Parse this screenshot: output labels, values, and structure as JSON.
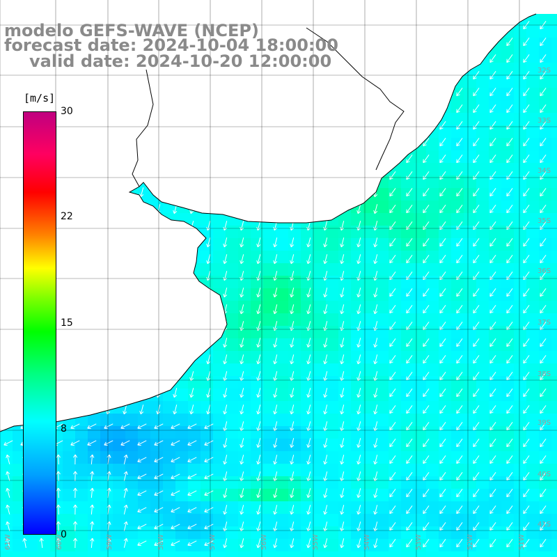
{
  "title": {
    "line1": "modelo GEFS-WAVE (NCEP)",
    "line2": "forecast date: 2024-10-04 18:00:00",
    "line3": "valid date: 2024-10-20 12:00:00"
  },
  "colorbar": {
    "unit": "[m/s]",
    "ticks": [
      "30",
      "22",
      "15",
      "8",
      "0"
    ],
    "min": 0,
    "max": 30
  },
  "lat_labels": [
    "32S",
    "33S",
    "34S",
    "35S",
    "36S",
    "37S",
    "38S",
    "39S",
    "40S",
    "41S"
  ],
  "lon_labels": [
    "61W",
    "60W",
    "59W",
    "58W",
    "57W",
    "56W",
    "55W",
    "54W",
    "53W",
    "52W",
    "51W"
  ],
  "colors": {
    "land": "#ffffff",
    "grid": "#000000",
    "arrows": "#ffffff",
    "title": "#8a8a8a"
  },
  "field": "wind speed with direction arrows"
}
